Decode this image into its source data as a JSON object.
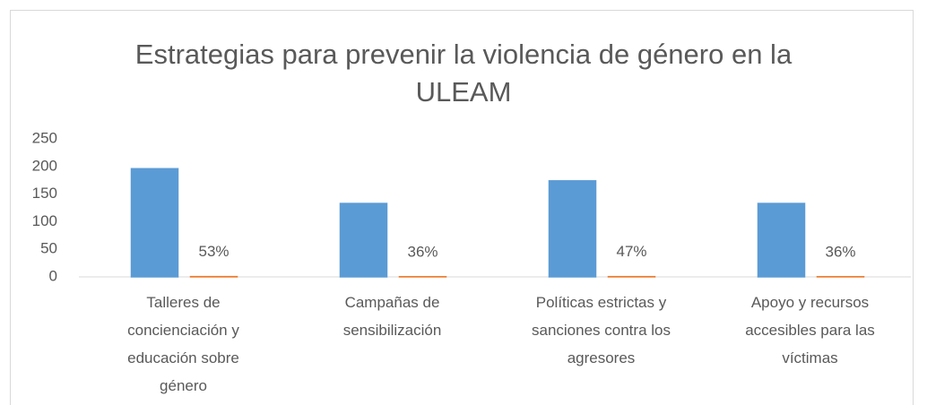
{
  "chart_data": {
    "type": "bar",
    "title": "Estrategias para prevenir la violencia de género en la ULEAM",
    "categories": [
      "Talleres de concienciación y educación sobre género",
      "Campañas de sensibilización",
      "Políticas estrictas y sanciones contra los agresores",
      "Apoyo y recursos accesibles para las víctimas"
    ],
    "series": [
      {
        "color": "#5b9bd5",
        "values": [
          196,
          133,
          174,
          133
        ]
      },
      {
        "color": "#ed7d31",
        "values": [
          0.53,
          0.36,
          0.47,
          0.36
        ],
        "value_labels": [
          "53%",
          "36%",
          "47%",
          "36%"
        ]
      }
    ],
    "ylim": [
      0,
      250
    ],
    "yticks": [
      0,
      50,
      100,
      150,
      200,
      250
    ],
    "grid": false
  }
}
